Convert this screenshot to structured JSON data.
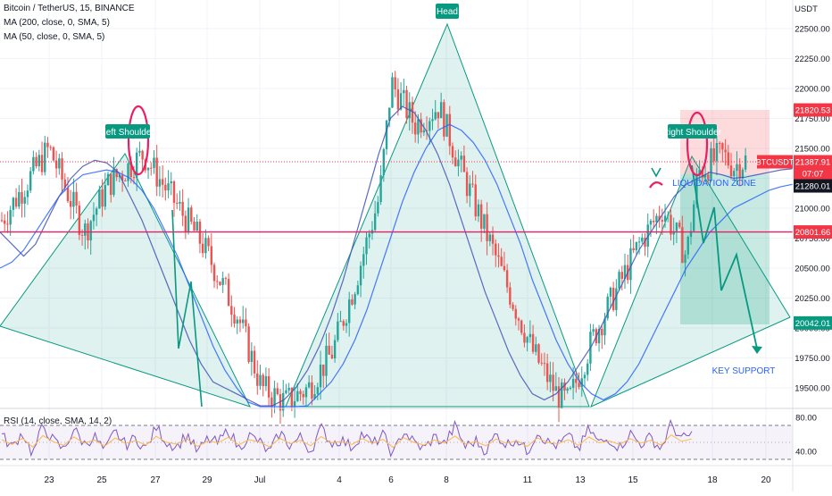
{
  "legend": {
    "symbol_line": "Bitcoin / TetherUS, 15, BINANCE",
    "ma200": "MA (200, close, 0, SMA, 5)",
    "ma50": "MA (50, close, 0, SMA, 5)"
  },
  "rsi_legend": "RSI (14, close, SMA, 14, 2)",
  "chart_data": {
    "type": "line",
    "title": "",
    "xlabel": "",
    "ylabel": "USDT",
    "ylim": [
      19320,
      22620
    ],
    "y_ticks": [
      "22500.00",
      "22250.00",
      "22000.00",
      "21750.00",
      "21500.00",
      "21250.00",
      "21000.00",
      "20750.00",
      "20500.00",
      "20250.00",
      "20000.00",
      "19750.00",
      "19500.00"
    ],
    "x_ticks": [
      "23",
      "25",
      "27",
      "29",
      "Jul",
      "4",
      "6",
      "8",
      "11",
      "13",
      "15",
      "18",
      "20"
    ],
    "price_labels": [
      {
        "text": "21820.53",
        "value": 21820.53,
        "color": "#f23645"
      },
      {
        "text": "BTCUSDT",
        "value": 21387.91,
        "color": "#f23645"
      },
      {
        "text": "21387.91",
        "value": 21387.91,
        "color": "#f23645"
      },
      {
        "text": "07:07",
        "value": 21320,
        "color": "#f23645"
      },
      {
        "text": "21280.01",
        "value": 21280.01,
        "color": "#131722"
      },
      {
        "text": "20801.66",
        "value": 20801.66,
        "color": "#f23645"
      },
      {
        "text": "20042.01",
        "value": 20042.01,
        "color": "#089981"
      }
    ],
    "horizontal_levels": [
      {
        "value": 20801.66,
        "color": "#e91e63",
        "style": "solid"
      },
      {
        "value": 21387.91,
        "color": "#f23645",
        "style": "dotted"
      }
    ],
    "annotations": [
      {
        "text": "Head",
        "type": "badge"
      },
      {
        "text": "Left Shoulder",
        "type": "badge"
      },
      {
        "text": "Right Shoulder",
        "type": "badge"
      },
      {
        "text": "LIQUIDATION ZONE",
        "type": "text"
      },
      {
        "text": "KEY SUPPORT",
        "type": "text"
      }
    ],
    "series": [
      {
        "name": "MA (200, close, 0, SMA, 5)",
        "color": "#2962ff",
        "x": [
          0,
          1,
          2,
          3,
          4,
          5,
          6,
          7,
          8,
          9,
          10,
          11,
          12,
          13,
          14,
          15,
          16,
          17,
          18,
          19,
          20,
          21,
          22,
          23,
          24,
          25,
          26,
          27,
          28,
          29,
          30,
          31,
          32,
          33,
          34,
          35,
          36,
          37,
          38,
          39,
          40,
          41,
          42,
          43,
          44,
          45,
          46,
          47,
          48,
          49,
          50,
          51,
          52,
          53,
          54,
          55,
          56,
          57,
          58,
          59,
          60,
          61,
          62,
          63,
          64,
          65,
          66,
          67
        ],
        "values": [
          20500,
          20550,
          20650,
          20800,
          20950,
          21100,
          21200,
          21280,
          21300,
          21320,
          21300,
          21250,
          21150,
          21000,
          20800,
          20600,
          20350,
          20100,
          19850,
          19650,
          19500,
          19380,
          19300,
          19250,
          19250,
          19300,
          19350,
          19450,
          19550,
          19700,
          19900,
          20150,
          20450,
          20750,
          21050,
          21300,
          21500,
          21650,
          21700,
          21650,
          21550,
          21400,
          21200,
          20950,
          20700,
          20400,
          20150,
          19900,
          19700,
          19550,
          19450,
          19400,
          19450,
          19550,
          19700,
          19900,
          20100,
          20300,
          20500,
          20650,
          20800,
          20900,
          21000,
          21050,
          21100,
          21150,
          21180,
          21200
        ]
      },
      {
        "name": "MA (50, close, 0, SMA, 5)",
        "color": "#3f51b5",
        "x": [
          0,
          1,
          2,
          3,
          4,
          5,
          6,
          7,
          8,
          9,
          10,
          11,
          12,
          13,
          14,
          15,
          16,
          17,
          18,
          19,
          20,
          21,
          22,
          23,
          24,
          25,
          26,
          27,
          28,
          29,
          30,
          31,
          32,
          33,
          34,
          35,
          36,
          37,
          38,
          39,
          40,
          41,
          42,
          43,
          44,
          45,
          46,
          47,
          48,
          49,
          50,
          51,
          52,
          53,
          54,
          55,
          56,
          57,
          58,
          59,
          60,
          61,
          62,
          63,
          64,
          65,
          66,
          67
        ],
        "values": [
          20800,
          20700,
          20600,
          20700,
          20900,
          21100,
          21250,
          21350,
          21400,
          21380,
          21300,
          21100,
          20900,
          20650,
          20400,
          20150,
          19900,
          19700,
          19550,
          19500,
          19450,
          19400,
          19350,
          19350,
          19400,
          19500,
          19650,
          19850,
          20100,
          20400,
          20750,
          21100,
          21450,
          21750,
          21850,
          21800,
          21650,
          21450,
          21200,
          20900,
          20600,
          20300,
          20050,
          19800,
          19600,
          19450,
          19400,
          19450,
          19550,
          19700,
          19850,
          20050,
          20250,
          20450,
          20650,
          20800,
          20950,
          21100,
          21200,
          21250,
          21300,
          21280,
          21250,
          21260,
          21280,
          21300,
          21320,
          21330
        ]
      },
      {
        "name": "",
        "color": "#089981",
        "x": [
          0,
          8,
          16,
          25,
          33,
          42,
          50,
          58,
          67
        ],
        "values": [
          19800,
          21550,
          20500,
          19380,
          22550,
          21000,
          19380,
          21600,
          19900
        ]
      }
    ],
    "rsi": {
      "levels": [
        "80.00",
        "40.00"
      ],
      "upper_band": 70,
      "lower_band": 30,
      "values": [
        58,
        44,
        62,
        36,
        70,
        52,
        41,
        66,
        48,
        57,
        39,
        63,
        47,
        55,
        42,
        68,
        50,
        45,
        60,
        38,
        54,
        49,
        65,
        43,
        58,
        51,
        37,
        62,
        46,
        56,
        40,
        67,
        49,
        53,
        44,
        61,
        47,
        59,
        35,
        64,
        50,
        42,
        57,
        48,
        69,
        45,
        52,
        40,
        60,
        47,
        55,
        38,
        63,
        50,
        46,
        58,
        41,
        66,
        49,
        54,
        44,
        61,
        48,
        56,
        42,
        72,
        53,
        60
      ]
    }
  }
}
